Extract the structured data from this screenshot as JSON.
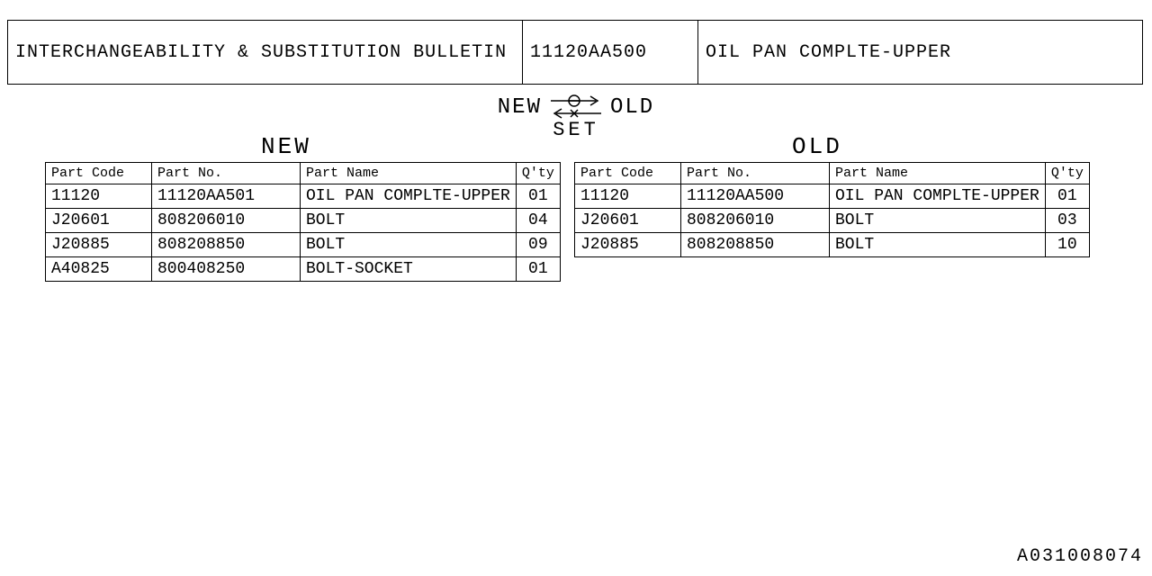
{
  "header": {
    "title": "INTERCHANGEABILITY & SUBSTITUTION BULLETIN",
    "part_no": "11120AA500",
    "part_name": "OIL PAN COMPLTE-UPPER"
  },
  "set_symbol": {
    "left_label": "NEW",
    "right_label": "OLD",
    "bottom_label": "SET"
  },
  "sections": {
    "new_label": "NEW",
    "old_label": "OLD"
  },
  "columns": {
    "code": "Part Code",
    "no": "Part No.",
    "name": "Part Name",
    "qty": "Q'ty"
  },
  "new_rows": [
    {
      "code": "11120",
      "no": "11120AA501",
      "name": "OIL PAN COMPLTE-UPPER",
      "qty": "01"
    },
    {
      "code": "J20601",
      "no": "808206010",
      "name": "BOLT",
      "qty": "04"
    },
    {
      "code": "J20885",
      "no": "808208850",
      "name": "BOLT",
      "qty": "09"
    },
    {
      "code": "A40825",
      "no": "800408250",
      "name": "BOLT-SOCKET",
      "qty": "01"
    }
  ],
  "old_rows": [
    {
      "code": "11120",
      "no": "11120AA500",
      "name": "OIL PAN COMPLTE-UPPER",
      "qty": "01"
    },
    {
      "code": "J20601",
      "no": "808206010",
      "name": "BOLT",
      "qty": "03"
    },
    {
      "code": "J20885",
      "no": "808208850",
      "name": "BOLT",
      "qty": "10"
    }
  ],
  "doc_number": "A031008074",
  "style": {
    "border_color": "#000000",
    "background_color": "#ffffff",
    "text_color": "#000000",
    "font_family": "Courier New, monospace"
  }
}
